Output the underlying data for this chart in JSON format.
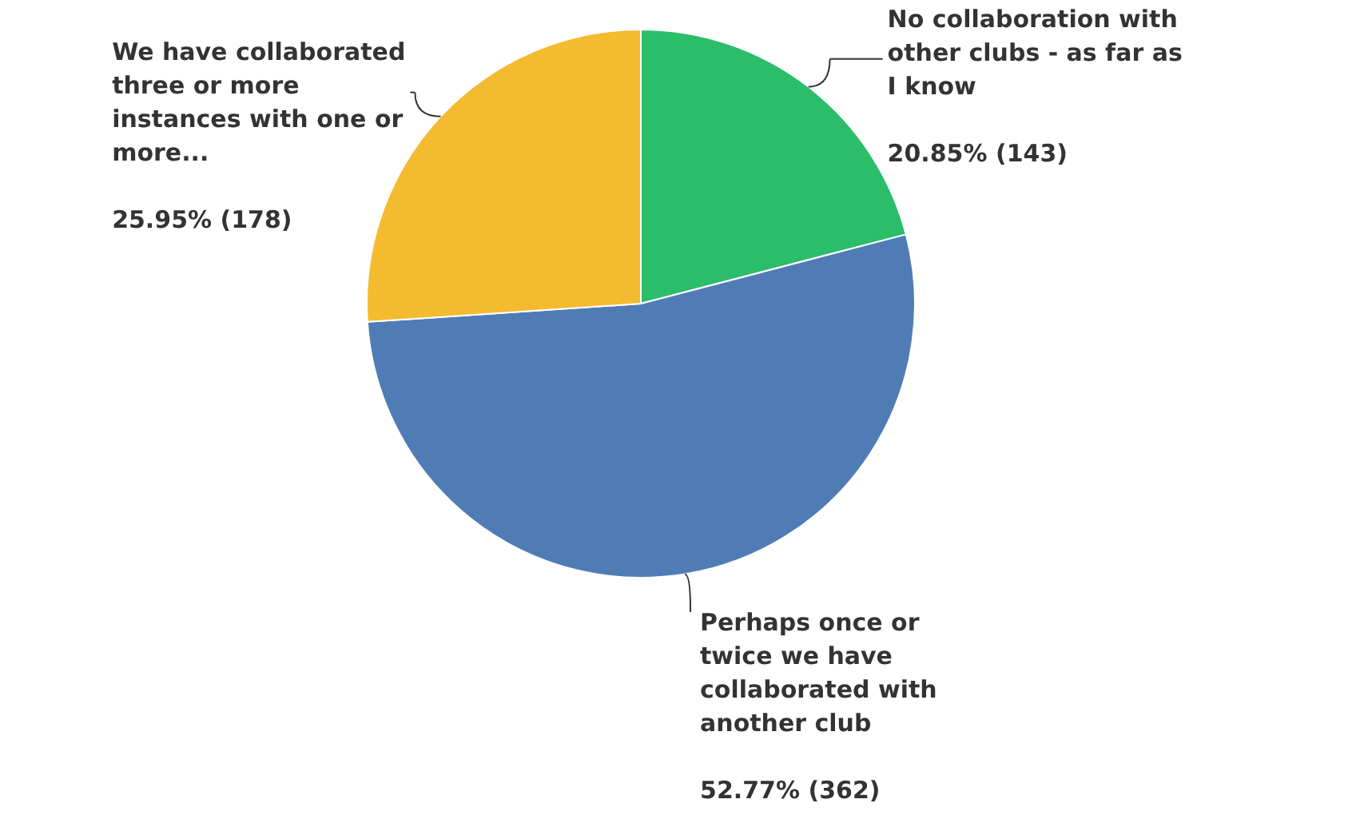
{
  "chart_data": {
    "type": "pie",
    "categories": [
      "No collaboration with other clubs - as far as I know",
      "Perhaps once or twice we have collaborated with another club",
      "We have collaborated three or more instances with one or more..."
    ],
    "values": [
      143,
      362,
      178
    ],
    "value_labels": [
      "20.85% (143)",
      "52.77% (362)",
      "25.95% (178)"
    ],
    "colors": [
      "#2cbd6b",
      "#507cb6",
      "#f4bb30"
    ],
    "legend": false
  }
}
